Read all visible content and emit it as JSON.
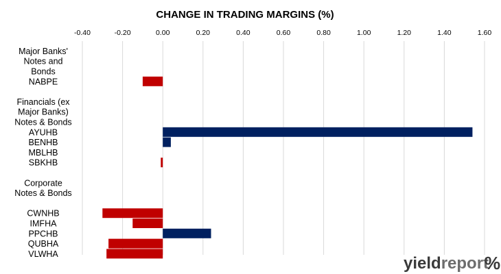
{
  "brand": {
    "logo_text_1": "yield",
    "logo_text_2": "report",
    "logo_symbol": "%",
    "logo_color_dark": "#3a3a3a",
    "logo_color_light": "#6d6d6d",
    "logo_accent": "#c00000"
  },
  "chart_data": {
    "type": "bar",
    "orientation": "horizontal",
    "title": "CHANGE IN TRADING MARGINS (%)",
    "xlabel": "",
    "ylabel": "",
    "xlim": [
      -0.4,
      1.6
    ],
    "xticks": [
      -0.4,
      -0.2,
      0.0,
      0.2,
      0.4,
      0.6,
      0.8,
      1.0,
      1.2,
      1.4,
      1.6
    ],
    "xtick_labels": [
      "-0.40",
      "-0.20",
      "0.00",
      "0.20",
      "0.40",
      "0.60",
      "0.80",
      "1.00",
      "1.20",
      "1.40",
      "1.60"
    ],
    "axis_position": "top",
    "grid": true,
    "legend": "none",
    "colors": {
      "positive": "#002060",
      "negative": "#c00000",
      "grid": "#d9d9d9"
    },
    "categories": [
      "Major Banks'",
      "Notes and",
      "Bonds",
      "NABPE",
      "",
      "Financials (ex",
      "Major Banks)",
      "Notes & Bonds",
      "AYUHB",
      "BENHB",
      "MBLHB",
      "SBKHB",
      "",
      "Corporate",
      "Notes & Bonds",
      "",
      "CWNHB",
      "IMFHA",
      "PPCHB",
      "QUBHA",
      "VLWHA"
    ],
    "values": [
      null,
      null,
      null,
      -0.1,
      null,
      null,
      null,
      null,
      1.54,
      0.04,
      0.0,
      -0.01,
      null,
      null,
      null,
      null,
      -0.3,
      -0.15,
      0.24,
      -0.27,
      -0.28
    ]
  }
}
